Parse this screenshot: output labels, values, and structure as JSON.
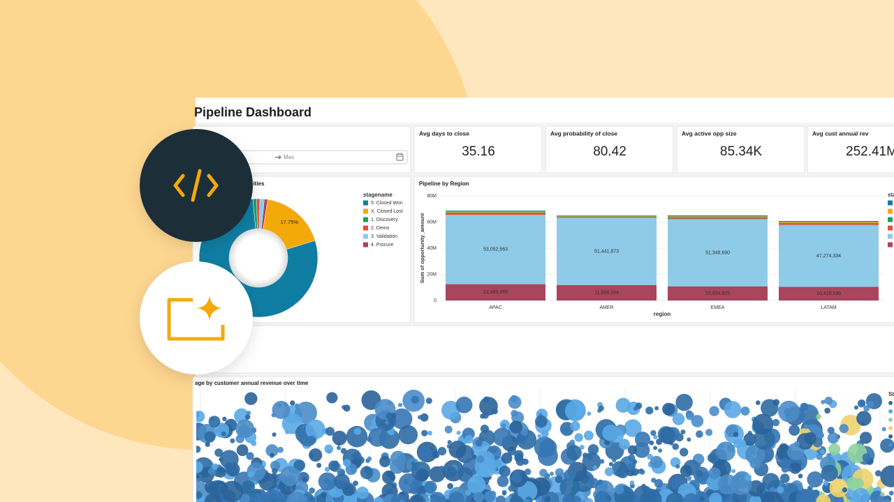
{
  "dashboard": {
    "title": "Pipeline Dashboard"
  },
  "filter": {
    "end_placeholder": "Max"
  },
  "kpis": [
    {
      "label": "Avg days to close",
      "value": "35.16"
    },
    {
      "label": "Avg probability of close",
      "value": "80.42"
    },
    {
      "label": "Avg active opp size",
      "value": "85.34K"
    },
    {
      "label": "Avg cust annual rev",
      "value": "252.41M"
    }
  ],
  "stage_chart": {
    "type": "pie",
    "title": "ortunities",
    "legend_title": "stagename",
    "slices": [
      {
        "name": "5. Closed Won",
        "color": "#0f7da2",
        "value": 78.25
      },
      {
        "name": "X. Closed Lost",
        "color": "#f4a90b",
        "value": 17.75,
        "label": "17.75%"
      },
      {
        "name": "1. Discovery",
        "color": "#19a068",
        "value": 1.0
      },
      {
        "name": "2. Demo",
        "color": "#ec4a3c",
        "value": 0.9
      },
      {
        "name": "3. Validation",
        "color": "#8ecbe8",
        "value": 1.2
      },
      {
        "name": "4. Procure",
        "color": "#a9455c",
        "value": 0.9
      }
    ]
  },
  "region_chart": {
    "type": "bar",
    "stacked": true,
    "title": "Pipeline by Region",
    "xlabel": "region",
    "ylabel": "Sum of opportunity_amount",
    "legend_title": "stagename",
    "categories": [
      "APAC",
      "AMER",
      "EMEA",
      "LATAM"
    ],
    "ylim": [
      0,
      80000000
    ],
    "yticks": [
      0,
      {
        "value": 20000000,
        "label": "20M"
      },
      {
        "value": 40000000,
        "label": "40M"
      },
      {
        "value": 60000000,
        "label": "60M"
      },
      {
        "value": 80000000,
        "label": "80M"
      }
    ],
    "grid": true,
    "series": [
      {
        "name": "5. Closed Won",
        "color": "#0f7da2",
        "values": [
          700000,
          400000,
          700000,
          700000
        ]
      },
      {
        "name": "X. Closed Lost",
        "color": "#f4a90b",
        "values": [
          800000,
          500000,
          700000,
          800000
        ]
      },
      {
        "name": "1. Discovery",
        "color": "#19a068",
        "values": [
          900000,
          500000,
          800000,
          800000
        ]
      },
      {
        "name": "2. Demo",
        "color": "#ec4a3c",
        "values": [
          800000,
          400000,
          700000,
          800000
        ]
      },
      {
        "name": "3. Validation",
        "color": "#8ecbe8",
        "values": [
          53052563,
          51441873,
          51348690,
          47274334
        ],
        "value_labels": [
          "53,052,563",
          "51,441,873",
          "51,348,690",
          "47,274,334"
        ]
      },
      {
        "name": "4. Procure",
        "color": "#a9455c",
        "values": [
          12488965,
          11866184,
          10834925,
          10410198
        ],
        "value_labels": [
          "12,488,965",
          "11,866,184",
          "10,834,925",
          "10,410,198"
        ]
      }
    ]
  },
  "scatter_chart": {
    "title": "age by customer annual revenue over time",
    "legend_title": "St"
  }
}
